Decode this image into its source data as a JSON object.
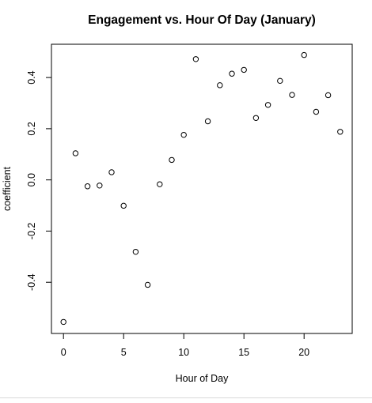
{
  "chart_data": {
    "type": "scatter",
    "title": "Engagement vs. Hour Of Day (January)",
    "xlabel": "Hour of Day",
    "ylabel": "coefficient",
    "xlim": [
      -1,
      24
    ],
    "ylim": [
      -0.6,
      0.53
    ],
    "x_ticks": [
      0,
      5,
      10,
      15,
      20
    ],
    "x_tick_labels": [
      "0",
      "5",
      "10",
      "15",
      "20"
    ],
    "y_ticks": [
      -0.4,
      -0.2,
      0.0,
      0.2,
      0.4
    ],
    "y_tick_labels": [
      "-0.4",
      "-0.2",
      "0.0",
      "0.2",
      "0.4"
    ],
    "grid": false,
    "legend": "none",
    "marker": "open-circle",
    "points": [
      {
        "x": 0,
        "y": -0.555
      },
      {
        "x": 1,
        "y": 0.104
      },
      {
        "x": 2,
        "y": -0.025
      },
      {
        "x": 3,
        "y": -0.022
      },
      {
        "x": 4,
        "y": 0.03
      },
      {
        "x": 5,
        "y": -0.101
      },
      {
        "x": 6,
        "y": -0.281
      },
      {
        "x": 7,
        "y": -0.41
      },
      {
        "x": 8,
        "y": -0.017
      },
      {
        "x": 9,
        "y": 0.078
      },
      {
        "x": 10,
        "y": 0.176
      },
      {
        "x": 11,
        "y": 0.472
      },
      {
        "x": 12,
        "y": 0.229
      },
      {
        "x": 13,
        "y": 0.37
      },
      {
        "x": 14,
        "y": 0.415
      },
      {
        "x": 15,
        "y": 0.43
      },
      {
        "x": 16,
        "y": 0.242
      },
      {
        "x": 17,
        "y": 0.293
      },
      {
        "x": 18,
        "y": 0.387
      },
      {
        "x": 19,
        "y": 0.332
      },
      {
        "x": 20,
        "y": 0.488
      },
      {
        "x": 21,
        "y": 0.266
      },
      {
        "x": 22,
        "y": 0.331
      },
      {
        "x": 23,
        "y": 0.188
      }
    ]
  }
}
